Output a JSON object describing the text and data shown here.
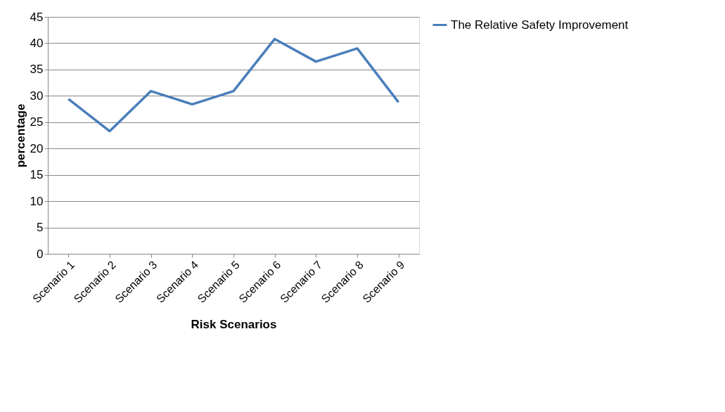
{
  "chart_data": {
    "type": "line",
    "xlabel": "Risk Scenarios",
    "ylabel": "percentage",
    "categories": [
      "Scenario 1",
      "Scenario 2",
      "Scenario 3",
      "Scenario 4",
      "Scenario 5",
      "Scenario 6",
      "Scenario 7",
      "Scenario 8",
      "Scenario 9"
    ],
    "series": [
      {
        "name": "The Relative Safety Improvement",
        "color": "#4a7ebb",
        "values": [
          29.4,
          23.3,
          30.9,
          28.4,
          30.9,
          40.8,
          36.5,
          39.0,
          28.8
        ]
      }
    ],
    "ylim": [
      0,
      45
    ],
    "yticks": [
      0,
      5,
      10,
      15,
      20,
      25,
      30,
      35,
      40,
      45
    ],
    "grid": "y",
    "legend": "right",
    "marker": "none",
    "line_style": "solid"
  }
}
